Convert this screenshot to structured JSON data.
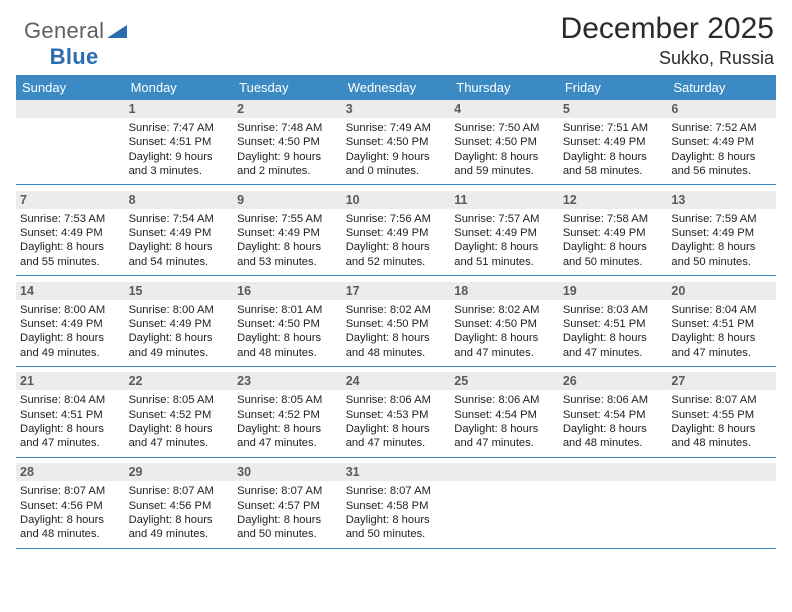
{
  "brand": {
    "name1": "General",
    "name2": "Blue"
  },
  "header": {
    "title": "December 2025",
    "location": "Sukko, Russia"
  },
  "style": {
    "header_bg": "#3b8ac4",
    "header_text": "#ffffff",
    "daynum_bg": "#ececec",
    "daynum_color": "#5a5a5a",
    "rule_color": "#3b8ac4",
    "body_text": "#222222",
    "title_fontsize": 30,
    "location_fontsize": 18,
    "dayhead_fontsize": 13,
    "cell_fontsize": 11.2
  },
  "weekdays": [
    "Sunday",
    "Monday",
    "Tuesday",
    "Wednesday",
    "Thursday",
    "Friday",
    "Saturday"
  ],
  "rows": [
    [
      null,
      {
        "n": "1",
        "sr": "Sunrise: 7:47 AM",
        "ss": "Sunset: 4:51 PM",
        "d1": "Daylight: 9 hours",
        "d2": "and 3 minutes."
      },
      {
        "n": "2",
        "sr": "Sunrise: 7:48 AM",
        "ss": "Sunset: 4:50 PM",
        "d1": "Daylight: 9 hours",
        "d2": "and 2 minutes."
      },
      {
        "n": "3",
        "sr": "Sunrise: 7:49 AM",
        "ss": "Sunset: 4:50 PM",
        "d1": "Daylight: 9 hours",
        "d2": "and 0 minutes."
      },
      {
        "n": "4",
        "sr": "Sunrise: 7:50 AM",
        "ss": "Sunset: 4:50 PM",
        "d1": "Daylight: 8 hours",
        "d2": "and 59 minutes."
      },
      {
        "n": "5",
        "sr": "Sunrise: 7:51 AM",
        "ss": "Sunset: 4:49 PM",
        "d1": "Daylight: 8 hours",
        "d2": "and 58 minutes."
      },
      {
        "n": "6",
        "sr": "Sunrise: 7:52 AM",
        "ss": "Sunset: 4:49 PM",
        "d1": "Daylight: 8 hours",
        "d2": "and 56 minutes."
      }
    ],
    [
      {
        "n": "7",
        "sr": "Sunrise: 7:53 AM",
        "ss": "Sunset: 4:49 PM",
        "d1": "Daylight: 8 hours",
        "d2": "and 55 minutes."
      },
      {
        "n": "8",
        "sr": "Sunrise: 7:54 AM",
        "ss": "Sunset: 4:49 PM",
        "d1": "Daylight: 8 hours",
        "d2": "and 54 minutes."
      },
      {
        "n": "9",
        "sr": "Sunrise: 7:55 AM",
        "ss": "Sunset: 4:49 PM",
        "d1": "Daylight: 8 hours",
        "d2": "and 53 minutes."
      },
      {
        "n": "10",
        "sr": "Sunrise: 7:56 AM",
        "ss": "Sunset: 4:49 PM",
        "d1": "Daylight: 8 hours",
        "d2": "and 52 minutes."
      },
      {
        "n": "11",
        "sr": "Sunrise: 7:57 AM",
        "ss": "Sunset: 4:49 PM",
        "d1": "Daylight: 8 hours",
        "d2": "and 51 minutes."
      },
      {
        "n": "12",
        "sr": "Sunrise: 7:58 AM",
        "ss": "Sunset: 4:49 PM",
        "d1": "Daylight: 8 hours",
        "d2": "and 50 minutes."
      },
      {
        "n": "13",
        "sr": "Sunrise: 7:59 AM",
        "ss": "Sunset: 4:49 PM",
        "d1": "Daylight: 8 hours",
        "d2": "and 50 minutes."
      }
    ],
    [
      {
        "n": "14",
        "sr": "Sunrise: 8:00 AM",
        "ss": "Sunset: 4:49 PM",
        "d1": "Daylight: 8 hours",
        "d2": "and 49 minutes."
      },
      {
        "n": "15",
        "sr": "Sunrise: 8:00 AM",
        "ss": "Sunset: 4:49 PM",
        "d1": "Daylight: 8 hours",
        "d2": "and 49 minutes."
      },
      {
        "n": "16",
        "sr": "Sunrise: 8:01 AM",
        "ss": "Sunset: 4:50 PM",
        "d1": "Daylight: 8 hours",
        "d2": "and 48 minutes."
      },
      {
        "n": "17",
        "sr": "Sunrise: 8:02 AM",
        "ss": "Sunset: 4:50 PM",
        "d1": "Daylight: 8 hours",
        "d2": "and 48 minutes."
      },
      {
        "n": "18",
        "sr": "Sunrise: 8:02 AM",
        "ss": "Sunset: 4:50 PM",
        "d1": "Daylight: 8 hours",
        "d2": "and 47 minutes."
      },
      {
        "n": "19",
        "sr": "Sunrise: 8:03 AM",
        "ss": "Sunset: 4:51 PM",
        "d1": "Daylight: 8 hours",
        "d2": "and 47 minutes."
      },
      {
        "n": "20",
        "sr": "Sunrise: 8:04 AM",
        "ss": "Sunset: 4:51 PM",
        "d1": "Daylight: 8 hours",
        "d2": "and 47 minutes."
      }
    ],
    [
      {
        "n": "21",
        "sr": "Sunrise: 8:04 AM",
        "ss": "Sunset: 4:51 PM",
        "d1": "Daylight: 8 hours",
        "d2": "and 47 minutes."
      },
      {
        "n": "22",
        "sr": "Sunrise: 8:05 AM",
        "ss": "Sunset: 4:52 PM",
        "d1": "Daylight: 8 hours",
        "d2": "and 47 minutes."
      },
      {
        "n": "23",
        "sr": "Sunrise: 8:05 AM",
        "ss": "Sunset: 4:52 PM",
        "d1": "Daylight: 8 hours",
        "d2": "and 47 minutes."
      },
      {
        "n": "24",
        "sr": "Sunrise: 8:06 AM",
        "ss": "Sunset: 4:53 PM",
        "d1": "Daylight: 8 hours",
        "d2": "and 47 minutes."
      },
      {
        "n": "25",
        "sr": "Sunrise: 8:06 AM",
        "ss": "Sunset: 4:54 PM",
        "d1": "Daylight: 8 hours",
        "d2": "and 47 minutes."
      },
      {
        "n": "26",
        "sr": "Sunrise: 8:06 AM",
        "ss": "Sunset: 4:54 PM",
        "d1": "Daylight: 8 hours",
        "d2": "and 48 minutes."
      },
      {
        "n": "27",
        "sr": "Sunrise: 8:07 AM",
        "ss": "Sunset: 4:55 PM",
        "d1": "Daylight: 8 hours",
        "d2": "and 48 minutes."
      }
    ],
    [
      {
        "n": "28",
        "sr": "Sunrise: 8:07 AM",
        "ss": "Sunset: 4:56 PM",
        "d1": "Daylight: 8 hours",
        "d2": "and 48 minutes."
      },
      {
        "n": "29",
        "sr": "Sunrise: 8:07 AM",
        "ss": "Sunset: 4:56 PM",
        "d1": "Daylight: 8 hours",
        "d2": "and 49 minutes."
      },
      {
        "n": "30",
        "sr": "Sunrise: 8:07 AM",
        "ss": "Sunset: 4:57 PM",
        "d1": "Daylight: 8 hours",
        "d2": "and 50 minutes."
      },
      {
        "n": "31",
        "sr": "Sunrise: 8:07 AM",
        "ss": "Sunset: 4:58 PM",
        "d1": "Daylight: 8 hours",
        "d2": "and 50 minutes."
      },
      null,
      null,
      null
    ]
  ]
}
